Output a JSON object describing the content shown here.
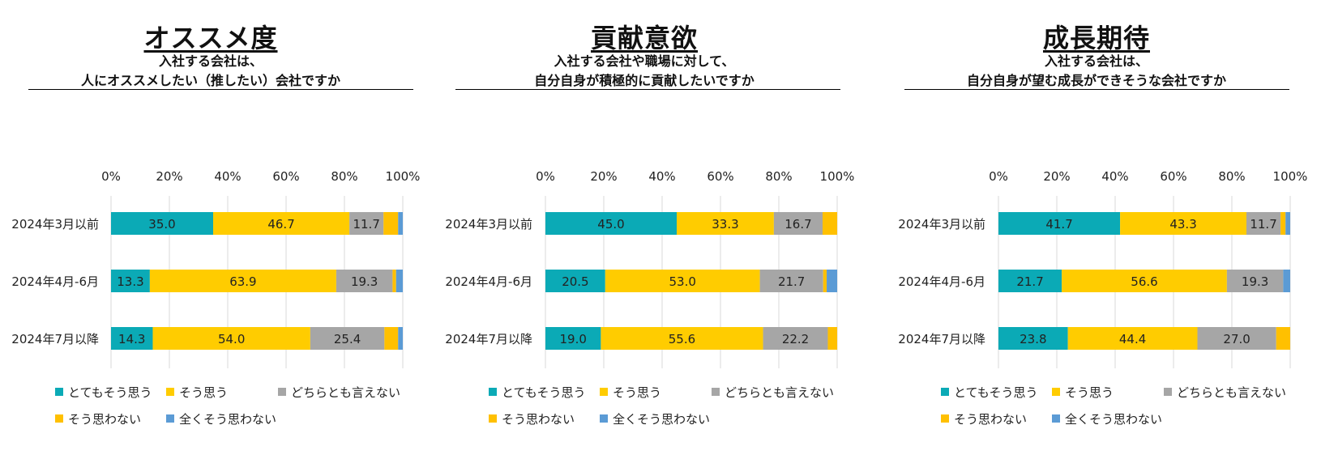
{
  "colors": {
    "very_agree": "#0BAAB6",
    "agree": "#FFCC00",
    "neutral": "#A6A6A6",
    "disagree": "#FFC000",
    "strongly_disagree": "#5B9BD5",
    "grid": "#D9D9D9",
    "text": "#222222"
  },
  "legend": [
    {
      "label": "とてもそう思う",
      "color": "#0BAAB6"
    },
    {
      "label": "そう思う",
      "color": "#FFCC00"
    },
    {
      "label": "どちらとも言えない",
      "color": "#A6A6A6"
    },
    {
      "label": "そう思わない",
      "color": "#FFC000"
    },
    {
      "label": "全くそう思わない",
      "color": "#5B9BD5"
    }
  ],
  "chart_data": [
    {
      "type": "bar",
      "orientation": "horizontal-stacked-100",
      "title": "オススメ度",
      "subtitle": [
        "入社する会社は、",
        "人にオススメしたい（推したい）会社ですか"
      ],
      "categories": [
        "2024年3月以前",
        "2024年4月-6月",
        "2024年7月以降"
      ],
      "xlim": [
        0,
        100
      ],
      "x_ticks": [
        "0%",
        "20%",
        "40%",
        "60%",
        "80%",
        "100%"
      ],
      "series": [
        {
          "name": "とてもそう思う",
          "values": [
            35.0,
            13.3,
            14.3
          ],
          "labels": [
            "35.0",
            "13.3",
            "14.3"
          ]
        },
        {
          "name": "そう思う",
          "values": [
            46.7,
            63.9,
            54.0
          ],
          "labels": [
            "46.7",
            "63.9",
            "54.0"
          ]
        },
        {
          "name": "どちらとも言えない",
          "values": [
            11.7,
            19.3,
            25.4
          ],
          "labels": [
            "11.7",
            "19.3",
            "25.4"
          ]
        },
        {
          "name": "そう思わない",
          "values": [
            5.0,
            1.2,
            4.7
          ],
          "labels": [
            "",
            "",
            ""
          ]
        },
        {
          "name": "全くそう思わない",
          "values": [
            1.6,
            2.3,
            1.6
          ],
          "labels": [
            "",
            "",
            ""
          ]
        }
      ]
    },
    {
      "type": "bar",
      "orientation": "horizontal-stacked-100",
      "title": "貢献意欲",
      "subtitle": [
        "入社する会社や職場に対して、",
        "自分自身が積極的に貢献したいですか"
      ],
      "categories": [
        "2024年3月以前",
        "2024年4月-6月",
        "2024年7月以降"
      ],
      "xlim": [
        0,
        100
      ],
      "x_ticks": [
        "0%",
        "20%",
        "40%",
        "60%",
        "80%",
        "100%"
      ],
      "series": [
        {
          "name": "とてもそう思う",
          "values": [
            45.0,
            20.5,
            19.0
          ],
          "labels": [
            "45.0",
            "20.5",
            "19.0"
          ]
        },
        {
          "name": "そう思う",
          "values": [
            33.3,
            53.0,
            55.6
          ],
          "labels": [
            "33.3",
            "53.0",
            "55.6"
          ]
        },
        {
          "name": "どちらとも言えない",
          "values": [
            16.7,
            21.7,
            22.2
          ],
          "labels": [
            "16.7",
            "21.7",
            "22.2"
          ]
        },
        {
          "name": "そう思わない",
          "values": [
            5.0,
            1.2,
            3.2
          ],
          "labels": [
            "",
            "",
            ""
          ]
        },
        {
          "name": "全くそう思わない",
          "values": [
            0.0,
            3.6,
            0.0
          ],
          "labels": [
            "",
            "",
            ""
          ]
        }
      ]
    },
    {
      "type": "bar",
      "orientation": "horizontal-stacked-100",
      "title": "成長期待",
      "subtitle": [
        "入社する会社は、",
        "自分自身が望む成長ができそうな会社ですか"
      ],
      "categories": [
        "2024年3月以前",
        "2024年4月-6月",
        "2024年7月以降"
      ],
      "xlim": [
        0,
        100
      ],
      "x_ticks": [
        "0%",
        "20%",
        "40%",
        "60%",
        "80%",
        "100%"
      ],
      "series": [
        {
          "name": "とてもそう思う",
          "values": [
            41.7,
            21.7,
            23.8
          ],
          "labels": [
            "41.7",
            "21.7",
            "23.8"
          ]
        },
        {
          "name": "そう思う",
          "values": [
            43.3,
            56.6,
            44.4
          ],
          "labels": [
            "43.3",
            "56.6",
            "44.4"
          ]
        },
        {
          "name": "どちらとも言えない",
          "values": [
            11.7,
            19.3,
            27.0
          ],
          "labels": [
            "11.7",
            "19.3",
            "27.0"
          ]
        },
        {
          "name": "そう思わない",
          "values": [
            1.7,
            0.0,
            4.8
          ],
          "labels": [
            "",
            "",
            ""
          ]
        },
        {
          "name": "全くそう思わない",
          "values": [
            1.6,
            2.4,
            0.0
          ],
          "labels": [
            "",
            "",
            ""
          ]
        }
      ]
    }
  ]
}
